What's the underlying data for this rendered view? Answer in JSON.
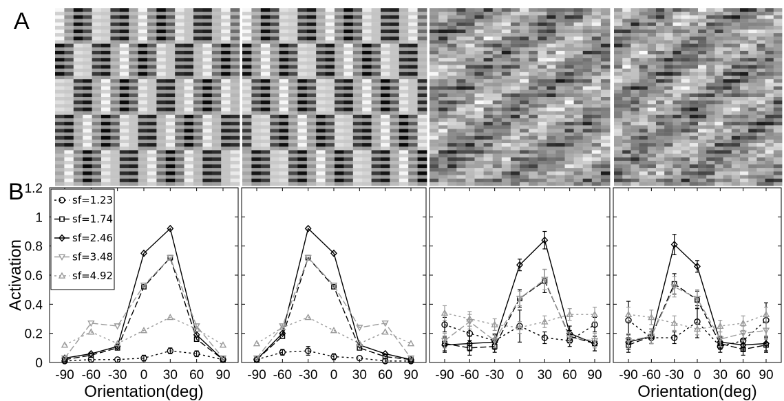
{
  "figure": {
    "panel_a_label": "A",
    "panel_b_label": "B"
  },
  "stimuli": [
    {
      "pattern": "grating",
      "row_shift": 1
    },
    {
      "pattern": "grating",
      "row_shift": -1
    },
    {
      "pattern": "noise",
      "seed": 11
    },
    {
      "pattern": "noise",
      "seed": 29
    }
  ],
  "chart_data": [
    {
      "type": "line",
      "xlabel": "Orientation(deg)",
      "ylabel": "Activation",
      "x": [
        -90,
        -60,
        -30,
        0,
        30,
        60,
        90
      ],
      "xticks": [
        "-90",
        "-60",
        "-30",
        "0",
        "30",
        "60",
        "90"
      ],
      "yticks": [
        "0",
        "0.2",
        "0.4",
        "0.6",
        "0.8",
        "1",
        "1.2"
      ],
      "ylim": [
        0,
        1.2
      ],
      "show_y_ticklabels": true,
      "show_xlabel": true,
      "legend": "top-left",
      "series": [
        {
          "name": "sf=1.23",
          "color": "#000000",
          "marker": "circle",
          "dash": "3,4",
          "values": [
            0.01,
            0.02,
            0.02,
            0.03,
            0.08,
            0.06,
            0.02
          ],
          "err": [
            0.01,
            0.01,
            0.01,
            0.02,
            0.02,
            0.02,
            0.01
          ]
        },
        {
          "name": "sf=1.74",
          "color": "#000000",
          "marker": "square",
          "dash": "9,4",
          "values": [
            0.02,
            0.05,
            0.1,
            0.52,
            0.72,
            0.16,
            0.02
          ],
          "err": [
            0.01,
            0.01,
            0.01,
            0.01,
            0.01,
            0.01,
            0.01
          ]
        },
        {
          "name": "sf=2.46",
          "color": "#000000",
          "marker": "diamond",
          "dash": "",
          "values": [
            0.03,
            0.06,
            0.11,
            0.75,
            0.92,
            0.19,
            0.02
          ],
          "err": [
            0.01,
            0.01,
            0.01,
            0.01,
            0.01,
            0.01,
            0.01
          ]
        },
        {
          "name": "sf=3.48",
          "color": "#9a9a9a",
          "marker": "triangle-down",
          "dash": "9,4",
          "values": [
            0.03,
            0.27,
            0.25,
            0.53,
            0.72,
            0.25,
            0.03
          ],
          "err": [
            0.01,
            0.01,
            0.01,
            0.01,
            0.01,
            0.01,
            0.01
          ]
        },
        {
          "name": "sf=4.92",
          "color": "#9a9a9a",
          "marker": "triangle-up",
          "dash": "3,4",
          "values": [
            0.12,
            0.21,
            0.13,
            0.22,
            0.31,
            0.23,
            0.12
          ],
          "err": [
            0.01,
            0.01,
            0.01,
            0.01,
            0.01,
            0.01,
            0.01
          ]
        }
      ]
    },
    {
      "type": "line",
      "xlabel": "",
      "ylabel": "",
      "x": [
        -90,
        -60,
        -30,
        0,
        30,
        60,
        90
      ],
      "xticks": [
        "-90",
        "-60",
        "-30",
        "0",
        "30",
        "60",
        "90"
      ],
      "yticks": [
        "",
        "",
        "",
        "",
        "",
        "",
        ""
      ],
      "ylim": [
        0,
        1.2
      ],
      "show_y_ticklabels": false,
      "show_xlabel": false,
      "series": [
        {
          "color": "#000000",
          "marker": "circle",
          "dash": "3,4",
          "values": [
            0.02,
            0.07,
            0.08,
            0.04,
            0.03,
            0.01,
            0.01
          ],
          "err": [
            0.01,
            0.02,
            0.03,
            0.02,
            0.01,
            0.01,
            0.01
          ]
        },
        {
          "color": "#000000",
          "marker": "square",
          "dash": "9,4",
          "values": [
            0.02,
            0.18,
            0.72,
            0.52,
            0.1,
            0.04,
            0.02
          ],
          "err": [
            0.01,
            0.01,
            0.01,
            0.01,
            0.01,
            0.01,
            0.01
          ]
        },
        {
          "color": "#000000",
          "marker": "diamond",
          "dash": "",
          "values": [
            0.02,
            0.2,
            0.92,
            0.75,
            0.12,
            0.06,
            0.02
          ],
          "err": [
            0.01,
            0.01,
            0.01,
            0.01,
            0.01,
            0.01,
            0.01
          ]
        },
        {
          "color": "#9a9a9a",
          "marker": "triangle-down",
          "dash": "9,4",
          "values": [
            0.03,
            0.25,
            0.72,
            0.53,
            0.24,
            0.27,
            0.03
          ],
          "err": [
            0.01,
            0.01,
            0.01,
            0.01,
            0.01,
            0.01,
            0.01
          ]
        },
        {
          "color": "#9a9a9a",
          "marker": "triangle-up",
          "dash": "3,4",
          "values": [
            0.13,
            0.24,
            0.31,
            0.22,
            0.13,
            0.21,
            0.13
          ],
          "err": [
            0.01,
            0.01,
            0.01,
            0.01,
            0.01,
            0.01,
            0.01
          ]
        }
      ]
    },
    {
      "type": "line",
      "xlabel": "",
      "ylabel": "",
      "x": [
        -90,
        -60,
        -30,
        0,
        30,
        60,
        90
      ],
      "xticks": [
        "-90",
        "-60",
        "-30",
        "0",
        "30",
        "60",
        "90"
      ],
      "yticks": [
        "",
        "",
        "",
        "",
        "",
        "",
        ""
      ],
      "ylim": [
        0,
        1.2
      ],
      "show_y_ticklabels": false,
      "show_xlabel": false,
      "series": [
        {
          "color": "#000000",
          "marker": "circle",
          "dash": "3,4",
          "values": [
            0.26,
            0.2,
            0.15,
            0.25,
            0.17,
            0.15,
            0.26
          ],
          "err": [
            0.05,
            0.05,
            0.05,
            0.11,
            0.04,
            0.04,
            0.05
          ]
        },
        {
          "color": "#000000",
          "marker": "square",
          "dash": "9,4",
          "values": [
            0.13,
            0.1,
            0.11,
            0.44,
            0.56,
            0.18,
            0.13
          ],
          "err": [
            0.05,
            0.05,
            0.04,
            0.06,
            0.08,
            0.04,
            0.05
          ]
        },
        {
          "color": "#000000",
          "marker": "diamond",
          "dash": "",
          "values": [
            0.12,
            0.13,
            0.14,
            0.67,
            0.84,
            0.2,
            0.13
          ],
          "err": [
            0.05,
            0.05,
            0.05,
            0.04,
            0.06,
            0.05,
            0.05
          ]
        },
        {
          "color": "#9a9a9a",
          "marker": "triangle-down",
          "dash": "9,4",
          "values": [
            0.15,
            0.28,
            0.15,
            0.44,
            0.57,
            0.17,
            0.15
          ],
          "err": [
            0.05,
            0.05,
            0.05,
            0.05,
            0.07,
            0.04,
            0.05
          ]
        },
        {
          "color": "#9a9a9a",
          "marker": "triangle-up",
          "dash": "3,4",
          "values": [
            0.34,
            0.3,
            0.26,
            0.24,
            0.28,
            0.33,
            0.33
          ],
          "err": [
            0.05,
            0.05,
            0.04,
            0.04,
            0.04,
            0.04,
            0.05
          ]
        }
      ]
    },
    {
      "type": "line",
      "xlabel": "Orientation(deg)",
      "ylabel": "",
      "x": [
        -90,
        -60,
        -30,
        0,
        30,
        60,
        90
      ],
      "xticks": [
        "-90",
        "-60",
        "-30",
        "0",
        "30",
        "60",
        "90"
      ],
      "yticks": [
        "",
        "",
        "",
        "",
        "",
        "",
        ""
      ],
      "ylim": [
        0,
        1.2
      ],
      "show_y_ticklabels": false,
      "show_xlabel": true,
      "series": [
        {
          "color": "#000000",
          "marker": "circle",
          "dash": "3,4",
          "values": [
            0.29,
            0.17,
            0.17,
            0.28,
            0.11,
            0.15,
            0.29
          ],
          "err": [
            0.13,
            0.04,
            0.04,
            0.11,
            0.04,
            0.05,
            0.12
          ]
        },
        {
          "color": "#000000",
          "marker": "square",
          "dash": "9,4",
          "values": [
            0.12,
            0.18,
            0.54,
            0.43,
            0.13,
            0.09,
            0.12
          ],
          "err": [
            0.05,
            0.05,
            0.07,
            0.06,
            0.04,
            0.04,
            0.05
          ]
        },
        {
          "color": "#000000",
          "marker": "diamond",
          "dash": "",
          "values": [
            0.14,
            0.18,
            0.81,
            0.66,
            0.14,
            0.12,
            0.13
          ],
          "err": [
            0.05,
            0.05,
            0.07,
            0.04,
            0.04,
            0.04,
            0.05
          ]
        },
        {
          "color": "#9a9a9a",
          "marker": "triangle-down",
          "dash": "9,4",
          "values": [
            0.15,
            0.18,
            0.52,
            0.44,
            0.16,
            0.2,
            0.22
          ],
          "err": [
            0.05,
            0.05,
            0.07,
            0.06,
            0.05,
            0.05,
            0.06
          ]
        },
        {
          "color": "#9a9a9a",
          "marker": "triangle-up",
          "dash": "3,4",
          "values": [
            0.33,
            0.31,
            0.27,
            0.23,
            0.25,
            0.27,
            0.33
          ],
          "err": [
            0.05,
            0.05,
            0.05,
            0.04,
            0.04,
            0.05,
            0.05
          ]
        }
      ]
    }
  ]
}
